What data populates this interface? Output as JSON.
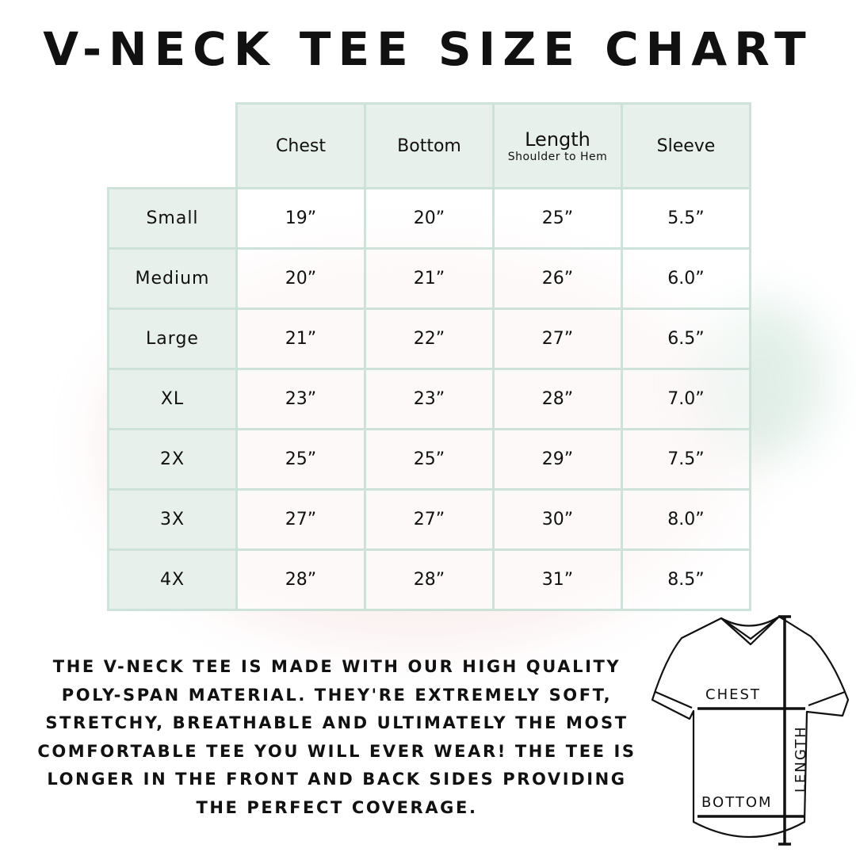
{
  "title": "V-NECK TEE SIZE CHART",
  "table": {
    "headers": [
      "Chest",
      "Bottom",
      "Length",
      "Sleeve"
    ],
    "length_subtitle": "Shoulder to Hem",
    "rows": [
      {
        "size": "Small",
        "values": [
          "19”",
          "20”",
          "25”",
          "5.5”"
        ]
      },
      {
        "size": "Medium",
        "values": [
          "20”",
          "21”",
          "26”",
          "6.0”"
        ]
      },
      {
        "size": "Large",
        "values": [
          "21”",
          "22”",
          "27”",
          "6.5”"
        ]
      },
      {
        "size": "XL",
        "values": [
          "23”",
          "23”",
          "28”",
          "7.0”"
        ]
      },
      {
        "size": "2X",
        "values": [
          "25”",
          "25”",
          "29”",
          "7.5”"
        ]
      },
      {
        "size": "3X",
        "values": [
          "27”",
          "27”",
          "30”",
          "8.0”"
        ]
      },
      {
        "size": "4X",
        "values": [
          "28”",
          "28”",
          "31”",
          "8.5”"
        ]
      }
    ]
  },
  "description": "The V-neck tee is made with our high quality poly-span material. They're extremely soft, stretchy, breathable and ultimately the most comfortable tee you will ever wear! The tee is longer in the front and back sides providing the perfect coverage.",
  "diagram": {
    "chest": "CHEST",
    "bottom": "BOTTOM",
    "length": "LENGTH"
  },
  "colors": {
    "header_bg": "#e8f0ec",
    "border": "#cde2d8"
  }
}
